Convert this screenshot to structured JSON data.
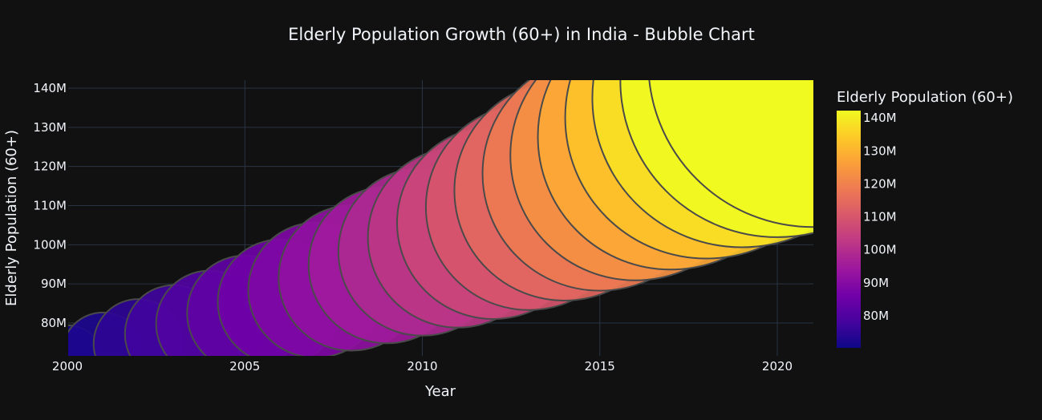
{
  "chart_data": {
    "type": "scatter",
    "title": "Elderly Population Growth (60+) in India - Bubble Chart",
    "xlabel": "Year",
    "ylabel": "Elderly Population (60+)",
    "xlim": [
      2000,
      2021
    ],
    "ylim": [
      72000000,
      142500000
    ],
    "x_ticks": [
      2000,
      2005,
      2010,
      2015,
      2020
    ],
    "x_tick_labels": [
      "2000",
      "2005",
      "2010",
      "2015",
      "2020"
    ],
    "y_ticks": [
      80000000,
      90000000,
      100000000,
      110000000,
      120000000,
      130000000,
      140000000
    ],
    "y_tick_labels": [
      "80M",
      "90M",
      "100M",
      "110M",
      "120M",
      "130M",
      "140M"
    ],
    "grid": true,
    "colorscale": "plasma",
    "colorbar": {
      "title": "Elderly Population (60+)",
      "range": [
        70000000,
        142000000
      ],
      "ticks": [
        80000000,
        90000000,
        100000000,
        110000000,
        120000000,
        130000000,
        140000000
      ],
      "tick_labels": [
        "80M",
        "90M",
        "100M",
        "110M",
        "120M",
        "130M",
        "140M"
      ],
      "placement": "right"
    },
    "x": [
      2000,
      2001,
      2002,
      2003,
      2004,
      2005,
      2006,
      2007,
      2008,
      2009,
      2010,
      2011,
      2012,
      2013,
      2014,
      2015,
      2016,
      2017,
      2018,
      2019,
      2020,
      2021
    ],
    "y": [
      70000000,
      72300000,
      74700000,
      77200000,
      79800000,
      82500000,
      85400000,
      88400000,
      91500000,
      94800000,
      98200000,
      101800000,
      105600000,
      109600000,
      113800000,
      118200000,
      122800000,
      127600000,
      132500000,
      137500000,
      142000000,
      146500000
    ],
    "series_name": ""
  }
}
